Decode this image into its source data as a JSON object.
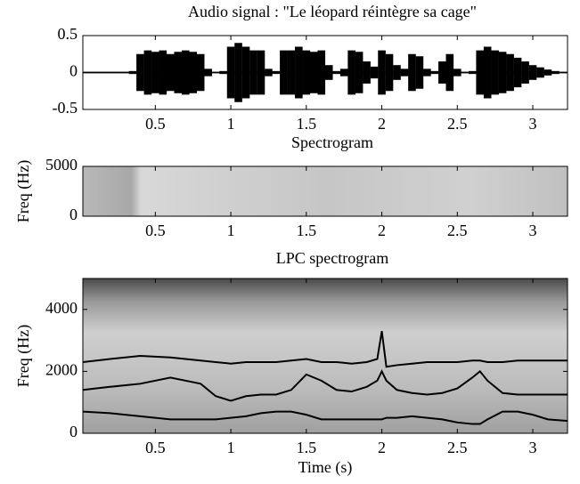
{
  "chart_data": [
    {
      "type": "waveform",
      "title": "Audio signal : \"Le léopard réintègre sa cage\"",
      "x": [
        0.05,
        0.1,
        0.15,
        0.2,
        0.25,
        0.3,
        0.35,
        0.4,
        0.45,
        0.5,
        0.55,
        0.6,
        0.65,
        0.7,
        0.75,
        0.8,
        0.85,
        0.9,
        0.95,
        1.0,
        1.05,
        1.1,
        1.15,
        1.2,
        1.25,
        1.3,
        1.35,
        1.4,
        1.45,
        1.5,
        1.55,
        1.6,
        1.65,
        1.7,
        1.75,
        1.8,
        1.85,
        1.9,
        1.95,
        2.0,
        2.05,
        2.1,
        2.15,
        2.2,
        2.25,
        2.3,
        2.35,
        2.4,
        2.45,
        2.5,
        2.55,
        2.6,
        2.65,
        2.7,
        2.75,
        2.8,
        2.85,
        2.9,
        2.95,
        3.0,
        3.05,
        3.1,
        3.15,
        3.2
      ],
      "series": [
        {
          "color": "#000000",
          "values": [
            0.01,
            0.01,
            0.01,
            0.01,
            0.01,
            0.01,
            0.02,
            0.25,
            0.3,
            0.28,
            0.3,
            0.25,
            0.28,
            0.3,
            0.28,
            0.25,
            0.05,
            0.01,
            0.02,
            0.35,
            0.4,
            0.35,
            0.3,
            0.3,
            0.05,
            0.02,
            0.3,
            0.3,
            0.35,
            0.3,
            0.28,
            0.3,
            0.1,
            0.02,
            0.05,
            0.3,
            0.28,
            0.15,
            0.08,
            0.3,
            0.25,
            0.1,
            0.05,
            0.25,
            0.22,
            0.05,
            0.02,
            0.15,
            0.25,
            0.05,
            0.01,
            0.02,
            0.3,
            0.35,
            0.3,
            0.28,
            0.25,
            0.2,
            0.15,
            0.1,
            0.07,
            0.04,
            0.02,
            0.01
          ]
        }
      ],
      "xlim": [
        0.02,
        3.23
      ],
      "xticks": [
        0.5,
        1,
        1.5,
        2,
        2.5,
        3
      ],
      "ylim": [
        -0.5,
        0.5
      ],
      "yticks": [
        -0.5,
        0,
        0.5
      ]
    },
    {
      "type": "spectrogram",
      "title": "Spectrogram",
      "ylabel": "Freq (Hz)",
      "xlim": [
        0.02,
        3.23
      ],
      "xticks": [
        0.5,
        1,
        1.5,
        2,
        2.5,
        3
      ],
      "ylim": [
        0,
        5000
      ],
      "yticks": [
        0,
        5000
      ]
    },
    {
      "type": "lpc",
      "title": "LPC spectrogram",
      "xlabel": "Time (s)",
      "ylabel": "Freq (Hz)",
      "x": [
        0.02,
        0.2,
        0.4,
        0.6,
        0.8,
        0.9,
        1.0,
        1.1,
        1.2,
        1.3,
        1.4,
        1.5,
        1.6,
        1.7,
        1.8,
        1.9,
        1.97,
        2.0,
        2.03,
        2.1,
        2.2,
        2.3,
        2.4,
        2.5,
        2.6,
        2.65,
        2.7,
        2.8,
        2.9,
        3.0,
        3.1,
        3.23
      ],
      "series": [
        {
          "color": "#000000",
          "values": [
            2300,
            2400,
            2500,
            2450,
            2350,
            2300,
            2250,
            2300,
            2300,
            2300,
            2350,
            2400,
            2300,
            2300,
            2250,
            2300,
            2400,
            3300,
            2150,
            2200,
            2250,
            2300,
            2300,
            2300,
            2350,
            2350,
            2300,
            2300,
            2350,
            2350,
            2350,
            2350
          ]
        },
        {
          "color": "#000000",
          "values": [
            1400,
            1500,
            1600,
            1800,
            1600,
            1200,
            1050,
            1200,
            1250,
            1250,
            1400,
            1900,
            1700,
            1400,
            1350,
            1500,
            1700,
            2000,
            1700,
            1400,
            1300,
            1250,
            1300,
            1450,
            1800,
            2000,
            1700,
            1300,
            1250,
            1250,
            1250,
            1250
          ]
        },
        {
          "color": "#000000",
          "values": [
            700,
            650,
            550,
            450,
            450,
            450,
            500,
            550,
            650,
            700,
            700,
            600,
            450,
            450,
            450,
            450,
            450,
            450,
            500,
            500,
            550,
            500,
            450,
            350,
            300,
            300,
            450,
            700,
            700,
            600,
            450,
            400
          ]
        }
      ],
      "xlim": [
        0.02,
        3.23
      ],
      "xticks": [
        0.5,
        1,
        1.5,
        2,
        2.5,
        3
      ],
      "ylim": [
        0,
        5000
      ],
      "yticks": [
        0,
        2000,
        4000
      ]
    }
  ]
}
